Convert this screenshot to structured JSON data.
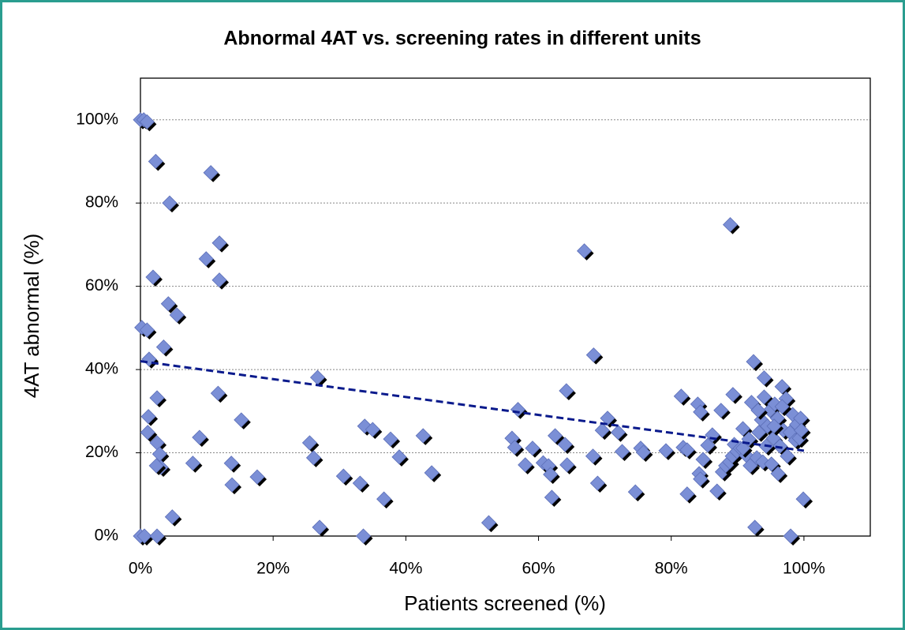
{
  "chart_data": {
    "type": "scatter",
    "title": "Abnormal 4AT vs. screening rates in different units",
    "xlabel": "Patients screened (%)",
    "ylabel": "4AT abnormal (%)",
    "x": [
      0,
      0.5,
      1,
      2.3,
      10.6,
      4.4,
      88.9,
      11.9,
      66.9,
      9.9,
      1.9,
      11.9,
      4.2,
      5.5,
      0.2,
      1,
      68.3,
      92.4,
      1.3,
      3.5,
      26.7,
      94,
      11.7,
      64.2,
      2.5,
      1.2,
      15.2,
      56.9,
      1.1,
      8.9,
      25.5,
      33.8,
      35,
      37.7,
      42.6,
      70.4,
      81.5,
      84,
      87.5,
      89.3,
      84.4,
      2.5,
      2.9,
      3.1,
      2.4,
      7.9,
      13.7,
      13.8,
      17.6,
      26.1,
      39,
      43.9,
      30.6,
      33.1,
      36.7,
      4.8,
      27,
      52.5,
      0,
      0.6,
      2.5,
      33.6,
      56,
      56.4,
      58,
      59.1,
      60.7,
      61.5,
      61.8,
      62,
      62.5,
      64,
      64.3,
      68.2,
      68.9,
      69.6,
      72,
      72.6,
      74.6,
      75.4,
      75.8,
      79.2,
      81.8,
      82.4,
      82.4,
      84.2,
      84.4,
      84.8,
      85.5,
      86.2,
      86.9,
      87.7,
      88.2,
      88.8,
      89.2,
      89.5,
      89.9,
      90.4,
      90.8,
      91.3,
      91.7,
      92.1,
      92.6,
      92.9,
      93.2,
      93.6,
      93.8,
      94,
      94.5,
      94.9,
      95.1,
      95.4,
      95.6,
      96,
      96.1,
      96.4,
      96.7,
      96.9,
      97.3,
      97.5,
      97.9,
      98,
      98.3,
      98.7,
      98.9,
      99.3,
      99.5,
      99.9,
      99.6,
      90.8,
      91.9,
      93.1,
      94.3,
      95.5,
      96.7
    ],
    "y": [
      100,
      100,
      99.5,
      90,
      87.3,
      80,
      74.8,
      70.4,
      68.5,
      66.6,
      62.2,
      61.5,
      55.8,
      53.1,
      50.1,
      49.5,
      43.5,
      41.9,
      42.5,
      45.4,
      38.1,
      38,
      34.3,
      34.9,
      33.2,
      28.7,
      27.9,
      30.4,
      24.9,
      23.7,
      22.4,
      26.4,
      25.6,
      23.3,
      24.1,
      28.3,
      33.6,
      31.7,
      30.2,
      34,
      29.8,
      22.4,
      19.7,
      16.5,
      16.9,
      17.5,
      17.5,
      12.3,
      14.2,
      18.8,
      19,
      15.2,
      14.4,
      12.7,
      8.9,
      4.6,
      2.1,
      3.2,
      0,
      0,
      0,
      0,
      23.5,
      21.3,
      17.1,
      21.1,
      17.6,
      16.9,
      14.8,
      9.3,
      24.1,
      22,
      17.1,
      19.2,
      12.7,
      25.4,
      24.9,
      20.3,
      10.6,
      21.1,
      20.1,
      20.5,
      21.3,
      20.7,
      10.1,
      15,
      13.7,
      18.4,
      21.8,
      24.3,
      10.8,
      15.4,
      16.9,
      17.8,
      19.2,
      22,
      20.3,
      21.1,
      25.8,
      19.4,
      23.3,
      32.1,
      2.1,
      18.8,
      24.9,
      27.9,
      17.8,
      33.4,
      26.4,
      30.2,
      17.3,
      23.5,
      31.7,
      28.3,
      15,
      21.6,
      35.9,
      25.4,
      33,
      19.2,
      24.9,
      0,
      29.2,
      23,
      26.8,
      23.5,
      28.3,
      8.9,
      25.4,
      21.1,
      16.9,
      30.2,
      21.6,
      26.4,
      31.1
    ],
    "color": "#7b8fd6",
    "trendline": {
      "x": [
        0,
        100
      ],
      "y": [
        42,
        20.5
      ],
      "color": "#0a1a8c"
    },
    "xlim": [
      0,
      110
    ],
    "ylim": [
      0,
      110
    ],
    "xticks": [
      {
        "value": 0,
        "label": "0%"
      },
      {
        "value": 20,
        "label": "20%"
      },
      {
        "value": 40,
        "label": "40%"
      },
      {
        "value": 60,
        "label": "60%"
      },
      {
        "value": 80,
        "label": "80%"
      },
      {
        "value": 100,
        "label": "100%"
      }
    ],
    "yticks": [
      {
        "value": 0,
        "label": "0%"
      },
      {
        "value": 20,
        "label": "20%"
      },
      {
        "value": 40,
        "label": "40%"
      },
      {
        "value": 60,
        "label": "60%"
      },
      {
        "value": 80,
        "label": "80%"
      },
      {
        "value": 100,
        "label": "100%"
      }
    ],
    "grid": true
  }
}
